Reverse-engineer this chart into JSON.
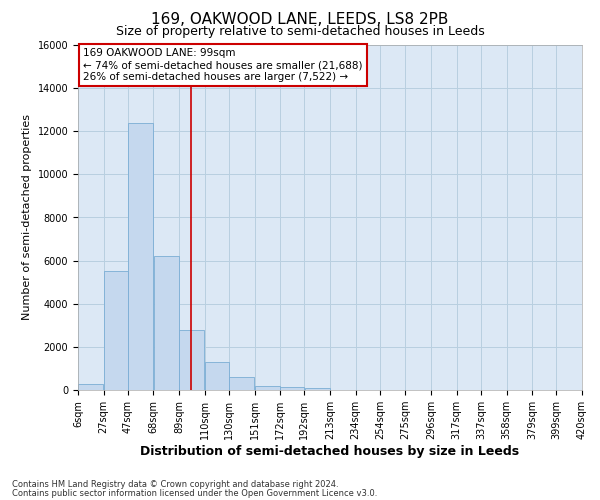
{
  "title": "169, OAKWOOD LANE, LEEDS, LS8 2PB",
  "subtitle": "Size of property relative to semi-detached houses in Leeds",
  "xlabel": "Distribution of semi-detached houses by size in Leeds",
  "ylabel": "Number of semi-detached properties",
  "footnote1": "Contains HM Land Registry data © Crown copyright and database right 2024.",
  "footnote2": "Contains public sector information licensed under the Open Government Licence v3.0.",
  "annotation_text": "169 OAKWOOD LANE: 99sqm\n← 74% of semi-detached houses are smaller (21,688)\n26% of semi-detached houses are larger (7,522) →",
  "bar_edges": [
    6,
    27,
    47,
    68,
    89,
    110,
    130,
    151,
    172,
    192,
    213,
    234,
    254,
    275,
    296,
    317,
    337,
    358,
    379,
    399,
    420
  ],
  "bar_heights": [
    300,
    5500,
    12400,
    6200,
    2800,
    1300,
    600,
    200,
    150,
    100,
    0,
    0,
    0,
    0,
    0,
    0,
    0,
    0,
    0,
    0
  ],
  "bar_color": "#c5d8ee",
  "bar_edge_color": "#7aadd4",
  "vline_color": "#cc0000",
  "vline_x": 99,
  "ylim": [
    0,
    16000
  ],
  "yticks": [
    0,
    2000,
    4000,
    6000,
    8000,
    10000,
    12000,
    14000,
    16000
  ],
  "grid_color": "#b8cfe0",
  "background_color": "#dce8f5",
  "annotation_box_facecolor": "#ffffff",
  "annotation_box_edgecolor": "#cc0000",
  "title_fontsize": 11,
  "subtitle_fontsize": 9,
  "ylabel_fontsize": 8,
  "xlabel_fontsize": 9,
  "tick_fontsize": 7,
  "annotation_fontsize": 7.5,
  "footnote_fontsize": 6
}
